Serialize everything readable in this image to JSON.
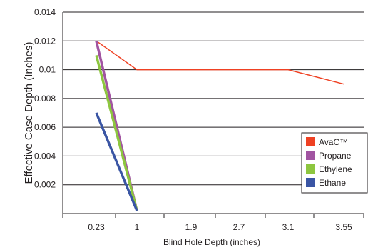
{
  "chart_data": {
    "type": "line",
    "title": "",
    "xlabel": "Blind Hole Depth (inches)",
    "ylabel": "Effective Case Depth (Inches)",
    "categories": [
      "0.23",
      "1",
      "1.9",
      "2.7",
      "3.1",
      "3.55"
    ],
    "ylim": [
      0,
      0.014
    ],
    "yticks": [
      "0.002",
      "0.004",
      "0.006",
      "0.008",
      "0.01",
      "0.012",
      "0.014"
    ],
    "grid": "horizontal",
    "legend_position": "right",
    "series": [
      {
        "name": "AvaC™",
        "color": "#ef4123",
        "points": [
          [
            0.23,
            0.012
          ],
          [
            1,
            0.01
          ],
          [
            3.1,
            0.01
          ],
          [
            3.55,
            0.009
          ]
        ]
      },
      {
        "name": "Propane",
        "color": "#a154a1",
        "points": [
          [
            0.23,
            0.012
          ],
          [
            1,
            0.0002
          ]
        ]
      },
      {
        "name": "Ethylene",
        "color": "#8dc63f",
        "points": [
          [
            0.23,
            0.011
          ],
          [
            1,
            0.0002
          ]
        ]
      },
      {
        "name": "Ethane",
        "color": "#3a55a4",
        "points": [
          [
            0.23,
            0.007
          ],
          [
            1,
            0.0002
          ]
        ]
      }
    ]
  }
}
